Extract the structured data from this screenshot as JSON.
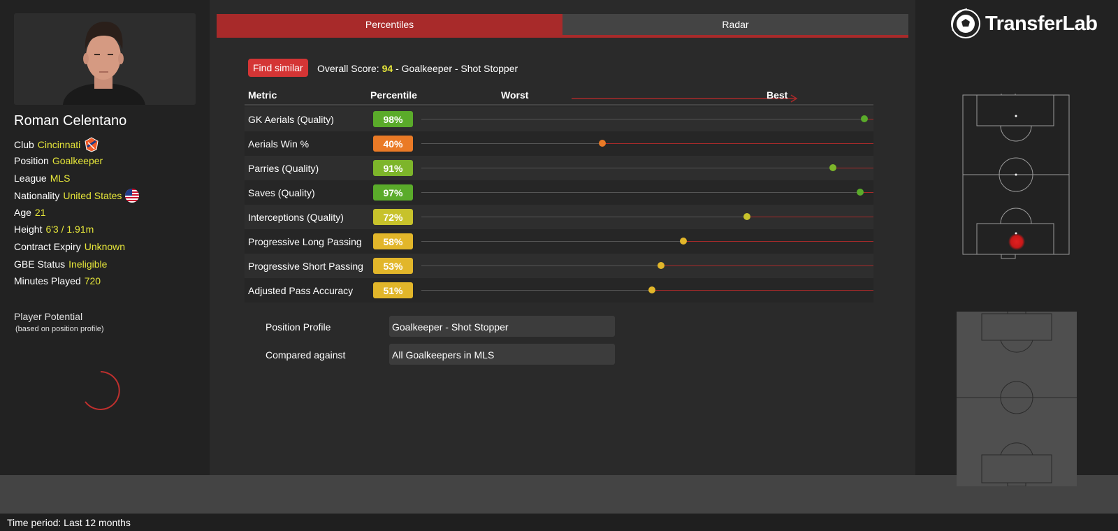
{
  "player": {
    "name": "Roman Celentano",
    "club_label": "Club",
    "club": "Cincinnati",
    "position_label": "Position",
    "position": "Goalkeeper",
    "league_label": "League",
    "league": "MLS",
    "nationality_label": "Nationality",
    "nationality": "United States",
    "age_label": "Age",
    "age": "21",
    "height_label": "Height",
    "height": "6'3 / 1.91m",
    "contract_label": "Contract Expiry",
    "contract": "Unknown",
    "gbe_label": "GBE Status",
    "gbe": "Ineligible",
    "minutes_label": "Minutes Played",
    "minutes": "720"
  },
  "potential": {
    "title": "Player Potential",
    "subtitle": "(based on position profile)"
  },
  "tabs": [
    {
      "label": "Percentiles",
      "active": true
    },
    {
      "label": "Radar",
      "active": false
    }
  ],
  "find_similar_label": "Find similar",
  "overall": {
    "prefix": "Overall Score:",
    "score": "94",
    "suffix": "- Goalkeeper - Shot Stopper"
  },
  "table_head": {
    "metric": "Metric",
    "percentile": "Percentile",
    "worst": "Worst",
    "best": "Best"
  },
  "metrics": [
    {
      "label": "GK Aerials (Quality)",
      "percentile_text": "98%",
      "percentile": 98,
      "color": "#5aab2a"
    },
    {
      "label": "Aerials Win %",
      "percentile_text": "40%",
      "percentile": 40,
      "color": "#ea7a26"
    },
    {
      "label": "Parries (Quality)",
      "percentile_text": "91%",
      "percentile": 91,
      "color": "#7db52a"
    },
    {
      "label": "Saves (Quality)",
      "percentile_text": "97%",
      "percentile": 97,
      "color": "#5aab2a"
    },
    {
      "label": "Interceptions (Quality)",
      "percentile_text": "72%",
      "percentile": 72,
      "color": "#c7c22b"
    },
    {
      "label": "Progressive Long Passing",
      "percentile_text": "58%",
      "percentile": 58,
      "color": "#e2b62a"
    },
    {
      "label": "Progressive Short Passing",
      "percentile_text": "53%",
      "percentile": 53,
      "color": "#e2b62a"
    },
    {
      "label": "Adjusted Pass Accuracy",
      "percentile_text": "51%",
      "percentile": 51,
      "color": "#e2b62a"
    }
  ],
  "profile": {
    "position_profile_label": "Position Profile",
    "position_profile_value": "Goalkeeper - Shot Stopper",
    "compared_label": "Compared against",
    "compared_value": "All Goalkeepers in MLS"
  },
  "brand": {
    "logo_text": "TransferLab",
    "accent": "#a82a2a",
    "highlight": "#e6e63a"
  },
  "footer": {
    "time_period": "Time period: Last 12 months"
  }
}
